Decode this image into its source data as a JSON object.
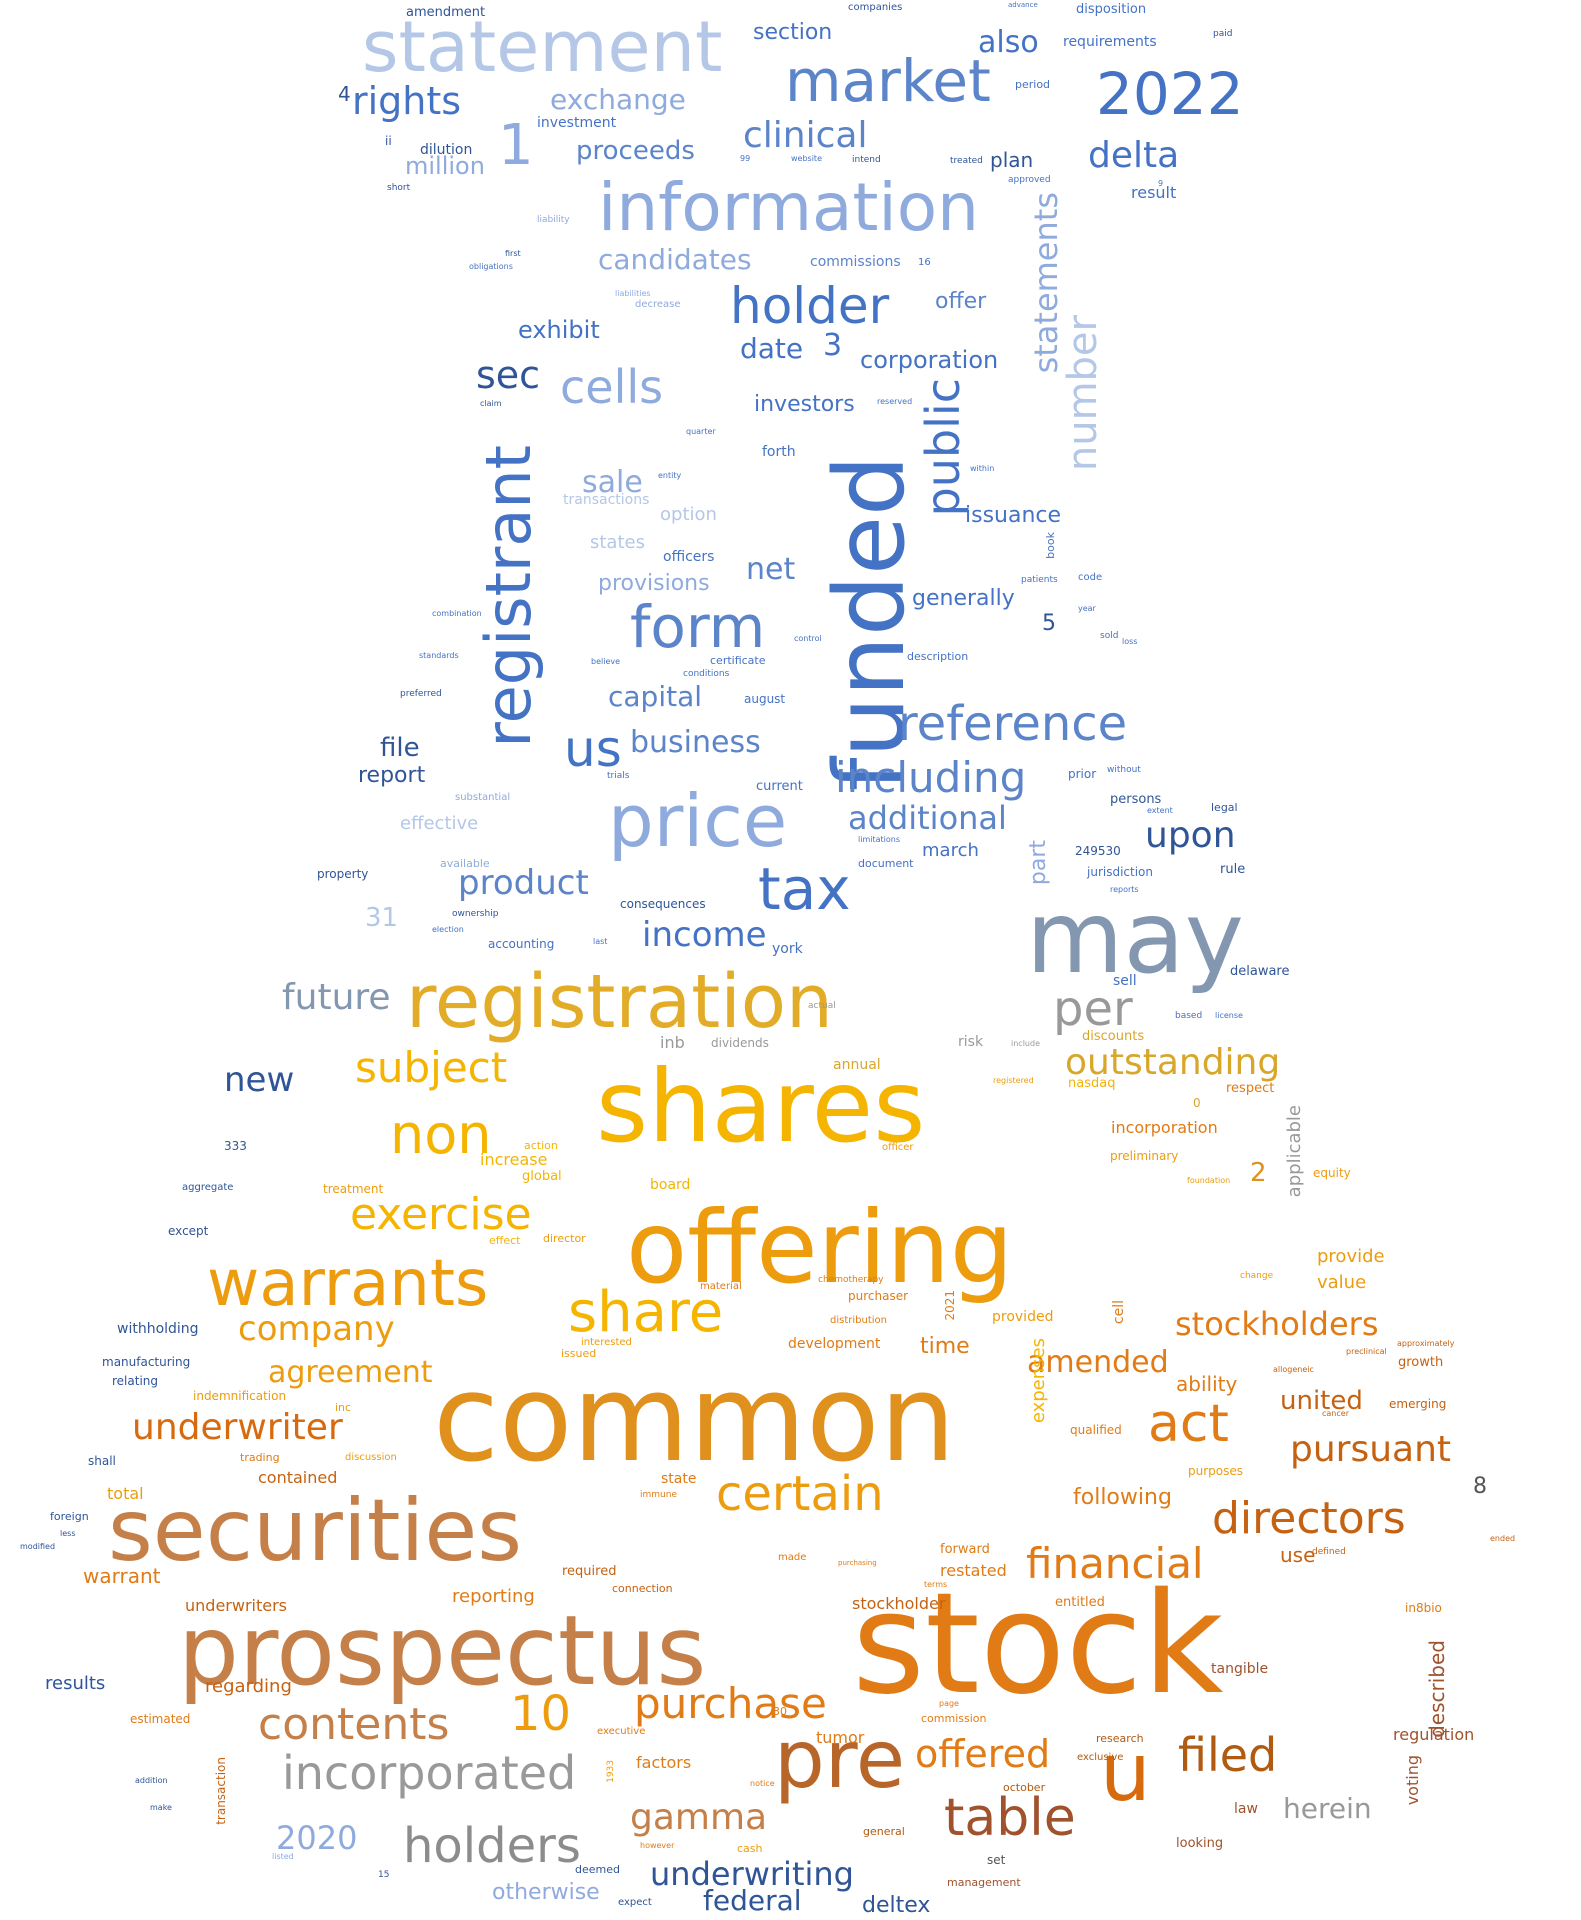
{
  "palette": {
    "blue_dark": "#2f5597",
    "blue": "#4472c4",
    "blue_mid": "#5b84c9",
    "blue_light": "#8faadc",
    "blue_pale": "#b4c7e7",
    "grey_blue": "#8497b0",
    "yellow": "#f5b400",
    "amber": "#ed9c0e",
    "orange": "#e07b16",
    "brown": "#c5804a",
    "grey": "#8c8c8c"
  },
  "words": [
    {
      "text": "statement"
    },
    {
      "text": "market"
    },
    {
      "text": "2022"
    },
    {
      "text": "rights"
    },
    {
      "text": "exchange"
    },
    {
      "text": "also"
    },
    {
      "text": "clinical"
    },
    {
      "text": "1"
    },
    {
      "text": "proceeds"
    },
    {
      "text": "delta"
    },
    {
      "text": "million"
    },
    {
      "text": "information"
    },
    {
      "text": "candidates"
    },
    {
      "text": "holder"
    },
    {
      "text": "offer"
    },
    {
      "text": "exhibit"
    },
    {
      "text": "date"
    },
    {
      "text": "3"
    },
    {
      "text": "corporation"
    },
    {
      "text": "statements"
    },
    {
      "text": "number"
    },
    {
      "text": "sec"
    },
    {
      "text": "cells"
    },
    {
      "text": "investors"
    },
    {
      "text": "public"
    },
    {
      "text": "registrant"
    },
    {
      "text": "funded"
    },
    {
      "text": "sale"
    },
    {
      "text": "issuance"
    },
    {
      "text": "form"
    },
    {
      "text": "net"
    },
    {
      "text": "provisions"
    },
    {
      "text": "generally"
    },
    {
      "text": "capital"
    },
    {
      "text": "reference"
    },
    {
      "text": "us"
    },
    {
      "text": "business"
    },
    {
      "text": "file"
    },
    {
      "text": "report"
    },
    {
      "text": "including"
    },
    {
      "text": "price"
    },
    {
      "text": "additional"
    },
    {
      "text": "upon"
    },
    {
      "text": "product"
    },
    {
      "text": "tax"
    },
    {
      "text": "may"
    },
    {
      "text": "income"
    },
    {
      "text": "future"
    },
    {
      "text": "registration"
    },
    {
      "text": "per"
    },
    {
      "text": "new"
    },
    {
      "text": "subject"
    },
    {
      "text": "outstanding"
    },
    {
      "text": "shares"
    },
    {
      "text": "non"
    },
    {
      "text": "exercise"
    },
    {
      "text": "offering"
    },
    {
      "text": "warrants"
    },
    {
      "text": "share"
    },
    {
      "text": "company"
    },
    {
      "text": "stockholders"
    },
    {
      "text": "agreement"
    },
    {
      "text": "amended"
    },
    {
      "text": "common"
    },
    {
      "text": "underwriter"
    },
    {
      "text": "act"
    },
    {
      "text": "united"
    },
    {
      "text": "pursuant"
    },
    {
      "text": "securities"
    },
    {
      "text": "certain"
    },
    {
      "text": "directors"
    },
    {
      "text": "financial"
    },
    {
      "text": "prospectus"
    },
    {
      "text": "stock"
    },
    {
      "text": "10"
    },
    {
      "text": "purchase"
    },
    {
      "text": "contents"
    },
    {
      "text": "pre"
    },
    {
      "text": "u"
    },
    {
      "text": "filed"
    },
    {
      "text": "incorporated"
    },
    {
      "text": "offered"
    },
    {
      "text": "table"
    },
    {
      "text": "holders"
    },
    {
      "text": "gamma"
    },
    {
      "text": "herein"
    },
    {
      "text": "2020"
    },
    {
      "text": "underwriting"
    },
    {
      "text": "federal"
    },
    {
      "text": "deltex"
    },
    {
      "text": "otherwise"
    },
    {
      "text": "section"
    },
    {
      "text": "plan"
    },
    {
      "text": "requirements"
    },
    {
      "text": "disposition"
    },
    {
      "text": "result"
    },
    {
      "text": "commissions"
    },
    {
      "text": "investment"
    },
    {
      "text": "dilution"
    },
    {
      "text": "amendment"
    },
    {
      "text": "4"
    },
    {
      "text": "5"
    },
    {
      "text": "8"
    },
    {
      "text": "2"
    },
    {
      "text": "31"
    },
    {
      "text": "effective"
    },
    {
      "text": "march"
    },
    {
      "text": "part"
    },
    {
      "text": "option"
    },
    {
      "text": "states"
    },
    {
      "text": "officers"
    },
    {
      "text": "transactions"
    },
    {
      "text": "forth"
    },
    {
      "text": "applicable"
    },
    {
      "text": "expenses"
    },
    {
      "text": "ability"
    },
    {
      "text": "provide"
    },
    {
      "text": "value"
    },
    {
      "text": "time"
    },
    {
      "text": "development"
    },
    {
      "text": "provided"
    },
    {
      "text": "incorporation"
    },
    {
      "text": "preliminary"
    },
    {
      "text": "nasdaq"
    },
    {
      "text": "respect"
    },
    {
      "text": "increase"
    },
    {
      "text": "global"
    },
    {
      "text": "board"
    },
    {
      "text": "treatment"
    },
    {
      "text": "withholding"
    },
    {
      "text": "manufacturing"
    },
    {
      "text": "relating"
    },
    {
      "text": "following"
    },
    {
      "text": "qualified"
    },
    {
      "text": "use"
    },
    {
      "text": "restated"
    },
    {
      "text": "forward"
    },
    {
      "text": "entitled"
    },
    {
      "text": "stockholder"
    },
    {
      "text": "described"
    },
    {
      "text": "tangible"
    },
    {
      "text": "regulation"
    },
    {
      "text": "reporting"
    },
    {
      "text": "underwriters"
    },
    {
      "text": "warrant"
    },
    {
      "text": "total"
    },
    {
      "text": "contained"
    },
    {
      "text": "results"
    },
    {
      "text": "regarding"
    },
    {
      "text": "tumor"
    },
    {
      "text": "factors"
    },
    {
      "text": "voting"
    },
    {
      "text": "law"
    },
    {
      "text": "looking"
    },
    {
      "text": "emerging"
    },
    {
      "text": "growth"
    },
    {
      "text": "in8bio"
    },
    {
      "text": "inb"
    },
    {
      "text": "dividends"
    },
    {
      "text": "risk"
    },
    {
      "text": "discounts"
    },
    {
      "text": "annual"
    },
    {
      "text": "sell"
    },
    {
      "text": "delaware"
    },
    {
      "text": "york"
    },
    {
      "text": "accounting"
    },
    {
      "text": "persons"
    },
    {
      "text": "legal"
    },
    {
      "text": "rule"
    },
    {
      "text": "jurisdiction"
    },
    {
      "text": "249530"
    },
    {
      "text": "document"
    },
    {
      "text": "consequences"
    },
    {
      "text": "prior"
    },
    {
      "text": "without"
    },
    {
      "text": "current"
    },
    {
      "text": "august"
    },
    {
      "text": "description"
    },
    {
      "text": "certificate"
    },
    {
      "text": "conditions"
    },
    {
      "text": "preferred"
    },
    {
      "text": "property"
    },
    {
      "text": "available"
    },
    {
      "text": "333"
    },
    {
      "text": "aggregate"
    },
    {
      "text": "except"
    },
    {
      "text": "indemnification"
    },
    {
      "text": "inc"
    },
    {
      "text": "trading"
    },
    {
      "text": "discussion"
    },
    {
      "text": "shall"
    },
    {
      "text": "foreign"
    },
    {
      "text": "estimated"
    },
    {
      "text": "executive"
    },
    {
      "text": "commission"
    },
    {
      "text": "research"
    },
    {
      "text": "exclusive"
    },
    {
      "text": "october"
    },
    {
      "text": "general"
    },
    {
      "text": "deemed"
    },
    {
      "text": "expect"
    },
    {
      "text": "management"
    },
    {
      "text": "set"
    },
    {
      "text": "30"
    },
    {
      "text": "cash"
    },
    {
      "text": "made"
    },
    {
      "text": "required"
    },
    {
      "text": "connection"
    },
    {
      "text": "state"
    },
    {
      "text": "issued"
    },
    {
      "text": "interested"
    },
    {
      "text": "purposes"
    },
    {
      "text": "purchaser"
    },
    {
      "text": "distribution"
    },
    {
      "text": "chemotherapy"
    },
    {
      "text": "material"
    },
    {
      "text": "cell"
    },
    {
      "text": "2021"
    },
    {
      "text": "action"
    },
    {
      "text": "effect"
    },
    {
      "text": "director"
    },
    {
      "text": "equity"
    },
    {
      "text": "officer"
    },
    {
      "text": "code"
    },
    {
      "text": "patients"
    },
    {
      "text": "book"
    },
    {
      "text": "approved"
    },
    {
      "text": "period"
    },
    {
      "text": "treated"
    },
    {
      "text": "intend"
    },
    {
      "text": "website"
    },
    {
      "text": "liability"
    },
    {
      "text": "obligations"
    },
    {
      "text": "first"
    },
    {
      "text": "decrease"
    },
    {
      "text": "liabilities"
    },
    {
      "text": "short"
    },
    {
      "text": "ii"
    },
    {
      "text": "companies"
    },
    {
      "text": "paid"
    },
    {
      "text": "claim"
    },
    {
      "text": "within"
    },
    {
      "text": "reserved"
    },
    {
      "text": "quarter"
    },
    {
      "text": "entity"
    },
    {
      "text": "ownership"
    },
    {
      "text": "election"
    },
    {
      "text": "last"
    },
    {
      "text": "trials"
    },
    {
      "text": "substantial"
    },
    {
      "text": "believe"
    },
    {
      "text": "limitations"
    },
    {
      "text": "reports"
    },
    {
      "text": "extent"
    },
    {
      "text": "actual"
    },
    {
      "text": "include"
    },
    {
      "text": "based"
    },
    {
      "text": "license"
    },
    {
      "text": "foundation"
    },
    {
      "text": "change"
    },
    {
      "text": "cancer"
    },
    {
      "text": "approximately"
    },
    {
      "text": "preclinical"
    },
    {
      "text": "allogeneic"
    },
    {
      "text": "defined"
    },
    {
      "text": "ended"
    },
    {
      "text": "transaction"
    },
    {
      "text": "1933"
    },
    {
      "text": "however"
    },
    {
      "text": "notice"
    },
    {
      "text": "immune"
    },
    {
      "text": "page"
    },
    {
      "text": "terms"
    },
    {
      "text": "registered"
    },
    {
      "text": "year"
    },
    {
      "text": "sold"
    },
    {
      "text": "loss"
    },
    {
      "text": "combination"
    },
    {
      "text": "standards"
    },
    {
      "text": "control"
    },
    {
      "text": "advance"
    },
    {
      "text": "purchasing"
    },
    {
      "text": "modified"
    },
    {
      "text": "make"
    },
    {
      "text": "addition"
    },
    {
      "text": "less"
    },
    {
      "text": "15"
    },
    {
      "text": "listed"
    },
    {
      "text": "16"
    },
    {
      "text": "9"
    },
    {
      "text": "0"
    },
    {
      "text": "99"
    }
  ]
}
